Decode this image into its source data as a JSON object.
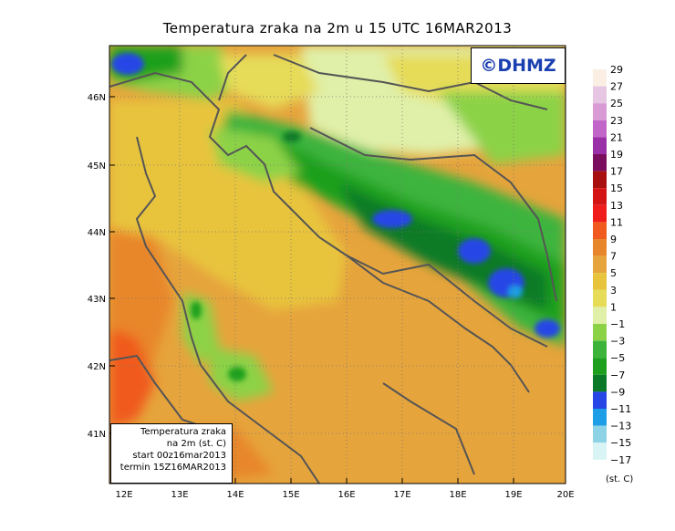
{
  "title": "Temperatura zraka na 2m u 15 UTC 16MAR2013",
  "logo": "©DHMZ",
  "info_box": {
    "line1": "Temperatura zraka",
    "line2": "na 2m (st. C)",
    "line3": "start 00z16mar2013",
    "line4": "termin 15Z16MAR2013"
  },
  "units": "(st. C)",
  "lat_labels": [
    "46N",
    "45N",
    "44N",
    "43N",
    "42N",
    "41N"
  ],
  "lon_labels": [
    "12E",
    "13E",
    "14E",
    "15E",
    "16E",
    "17E",
    "18E",
    "19E",
    "20E"
  ],
  "legend": {
    "labels": [
      "29",
      "27",
      "25",
      "23",
      "21",
      "19",
      "17",
      "15",
      "13",
      "11",
      "9",
      "7",
      "5",
      "3",
      "1",
      "−1",
      "−3",
      "−5",
      "−7",
      "−9",
      "−11",
      "−13",
      "−15",
      "−17"
    ],
    "colors": [
      "#fbefe4",
      "#e6c6e2",
      "#d99ad6",
      "#c165c8",
      "#9a2fa8",
      "#7a0d5e",
      "#a81010",
      "#d41414",
      "#f01c1c",
      "#f05a1e",
      "#e8862c",
      "#e6a43c",
      "#e8c43c",
      "#e6dc58",
      "#e0f0a8",
      "#8cd246",
      "#3cb43c",
      "#1ea01e",
      "#0a7a28",
      "#2846e6",
      "#1e9ee6",
      "#8ed2e6",
      "#d8f4f4"
    ]
  },
  "colors": {
    "sea_warm": "#e6a43c",
    "land_warm": "#e8c43c",
    "cold_mountain": "#1ea01e",
    "coldest": "#2846e6",
    "border": "#555555"
  }
}
